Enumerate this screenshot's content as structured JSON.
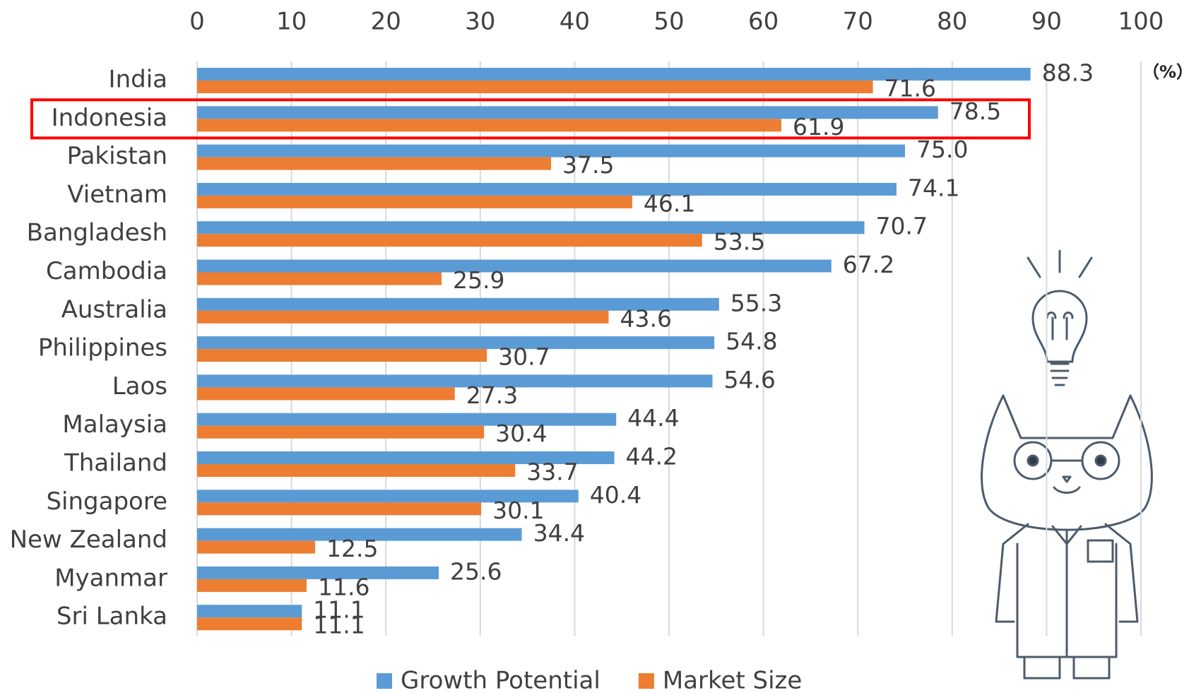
{
  "chart_data": {
    "type": "bar",
    "orientation": "horizontal",
    "categories": [
      "India",
      "Indonesia",
      "Pakistan",
      "Vietnam",
      "Bangladesh",
      "Cambodia",
      "Australia",
      "Philippines",
      "Laos",
      "Malaysia",
      "Thailand",
      "Singapore",
      "New Zealand",
      "Myanmar",
      "Sri Lanka"
    ],
    "series": [
      {
        "name": "Growth Potential",
        "color": "#5b9bd5",
        "values": [
          88.3,
          78.5,
          75.0,
          74.1,
          70.7,
          67.2,
          55.3,
          54.8,
          54.6,
          44.4,
          44.2,
          40.4,
          34.4,
          25.6,
          11.1
        ],
        "value_labels": [
          "88.3",
          "78.5",
          "75.0",
          "74.1",
          "70.7",
          "67.2",
          "55.3",
          "54.8",
          "54.6",
          "44.4",
          "44.2",
          "40.4",
          "34.4",
          "25.6",
          "11.1"
        ]
      },
      {
        "name": "Market Size",
        "color": "#ed7d31",
        "values": [
          71.6,
          61.9,
          37.5,
          46.1,
          53.5,
          25.9,
          43.6,
          30.7,
          27.3,
          30.4,
          33.7,
          30.1,
          12.5,
          11.6,
          11.1
        ],
        "value_labels": [
          "71.6",
          "61.9",
          "37.5",
          "46.1",
          "53.5",
          "25.9",
          "43.6",
          "30.7",
          "27.3",
          "30.4",
          "33.7",
          "30.1",
          "12.5",
          "11.6",
          "11.1"
        ]
      }
    ],
    "xlim": [
      0,
      100
    ],
    "xticks": [
      0,
      10,
      20,
      30,
      40,
      50,
      60,
      70,
      80,
      90,
      100
    ],
    "unit_label": "（%）",
    "grid": true
  }
}
